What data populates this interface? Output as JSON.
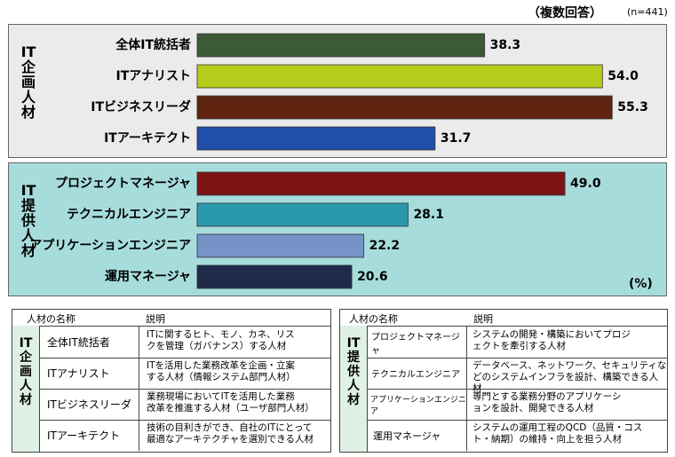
{
  "note": {
    "main": "（複数回答）",
    "n": "(n=441)"
  },
  "unit": "(%)",
  "groups": [
    {
      "label": "IT企画人材"
    },
    {
      "label": "IT提供人材"
    }
  ],
  "chart_data": {
    "type": "bar",
    "orientation": "horizontal",
    "xlim": [
      0,
      60
    ],
    "grid": false,
    "categories": [
      "全体IT統括者",
      "ITアナリスト",
      "ITビジネスリーダ",
      "ITアーキテクト",
      "プロジェクトマネージャ",
      "テクニカルエンジニア",
      "アプリケーションエンジニア",
      "運用マネージャ"
    ],
    "values": [
      38.3,
      54.0,
      55.3,
      31.7,
      49.0,
      28.1,
      22.2,
      20.6
    ],
    "value_labels": [
      "38.3",
      "54.0",
      "55.3",
      "31.7",
      "49.0",
      "28.1",
      "22.2",
      "20.6"
    ],
    "colors": [
      "#3d5a36",
      "#b5cc1c",
      "#5e2410",
      "#1f4fa8",
      "#7c1414",
      "#2a98ac",
      "#7593c6",
      "#1f2a4a"
    ]
  },
  "table_left": {
    "header_name": "人材の名称",
    "header_desc": "説明",
    "side_label": "IT企画人材",
    "rows": [
      {
        "name": "全体IT統括者",
        "desc1": "ITに関するヒト、モノ、カネ、リス",
        "desc2": "クを管理（ガバナンス）する人材"
      },
      {
        "name": "ITアナリスト",
        "desc1": "ITを活用した業務改革を企画・立案",
        "desc2": "する人材（情報システム部門人材）"
      },
      {
        "name": "ITビジネスリーダ",
        "desc1": "業務現場においてITを活用した業務",
        "desc2": "改革を推進する人材（ユーザ部門人材）"
      },
      {
        "name": "ITアーキテクト",
        "desc1": "技術の目利きができ、自社のITにとって",
        "desc2": "最適なアーキテクチャを選別できる人材"
      }
    ]
  },
  "table_right": {
    "header_name": "人材の名称",
    "header_desc": "説明",
    "side_label": "IT提供人材",
    "rows": [
      {
        "name": "プロジェクトマネージャ",
        "desc1": "システムの開発・構築においてプロジ",
        "desc2": "ェクトを牽引する人材"
      },
      {
        "name": "テクニカルエンジニア",
        "desc1": "データベース、ネットワーク、セキュリティな",
        "desc2": "どのシステムインフラを設計、構築できる人材"
      },
      {
        "name": "アプリケーションエンジニア",
        "desc1": "専門とする業務分野のアプリケーシ",
        "desc2": "ョンを設計、開発できる人材"
      },
      {
        "name": "運用マネージャ",
        "desc1": "システムの運用工程のQCD（品質・コス",
        "desc2": "ト・納期）の維持・向上を担う人材"
      }
    ]
  }
}
